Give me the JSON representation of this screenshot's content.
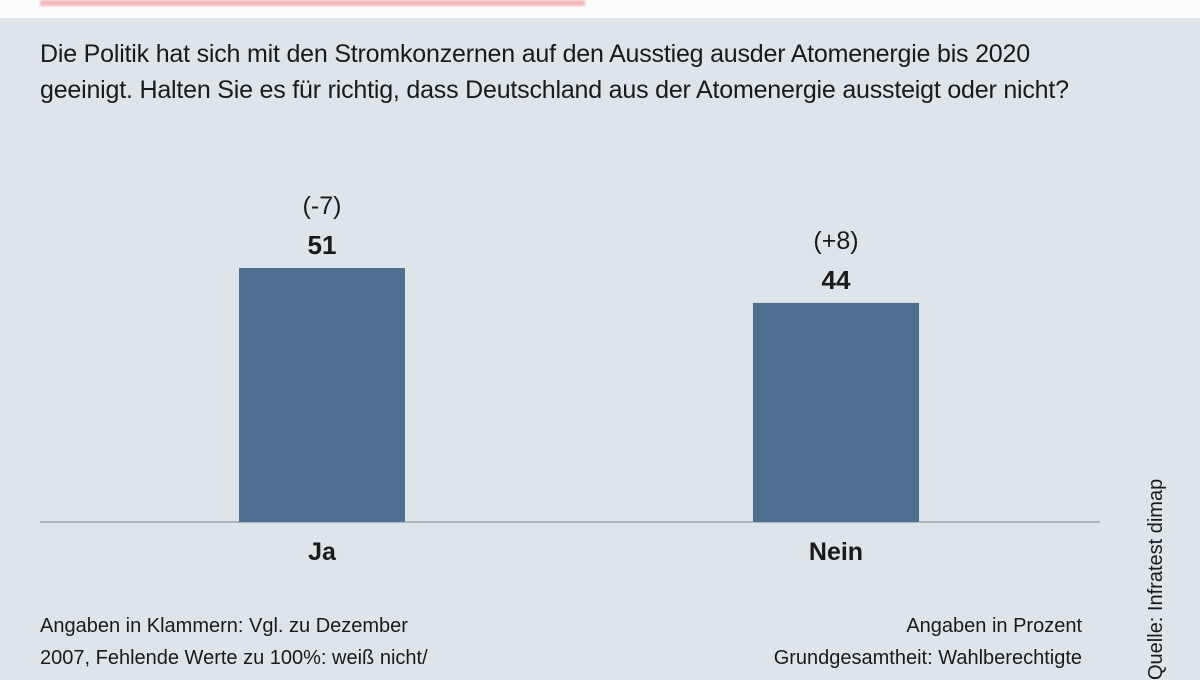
{
  "question": "Die Politik hat sich mit den Stromkonzernen auf den Ausstieg ausder Atomenergie bis 2020 geeinigt. Halten Sie es für richtig, dass Deutschland aus der Atomenergie aussteigt oder nicht?",
  "chart_data": {
    "type": "bar",
    "categories": [
      "Ja",
      "Nein"
    ],
    "values": [
      51,
      44
    ],
    "changes": [
      "(-7)",
      "(+8)"
    ],
    "value_labels": [
      "51",
      "44"
    ],
    "unit_note": "Angaben in Prozent",
    "ylim": [
      0,
      100
    ],
    "grid": false,
    "bar_color": "#4f6f91"
  },
  "notes": {
    "left_line1": "Angaben in Klammern: Vgl. zu Dezember",
    "left_line2": "2007, Fehlende Werte zu 100%: weiß nicht/",
    "right_line1": "Angaben in Prozent",
    "right_line2": "Grundgesamtheit: Wahlberechtigte"
  },
  "source": "Quelle: Infratest dimap",
  "colors": {
    "background": "#dde4ea",
    "bar": "#4f6f91"
  }
}
